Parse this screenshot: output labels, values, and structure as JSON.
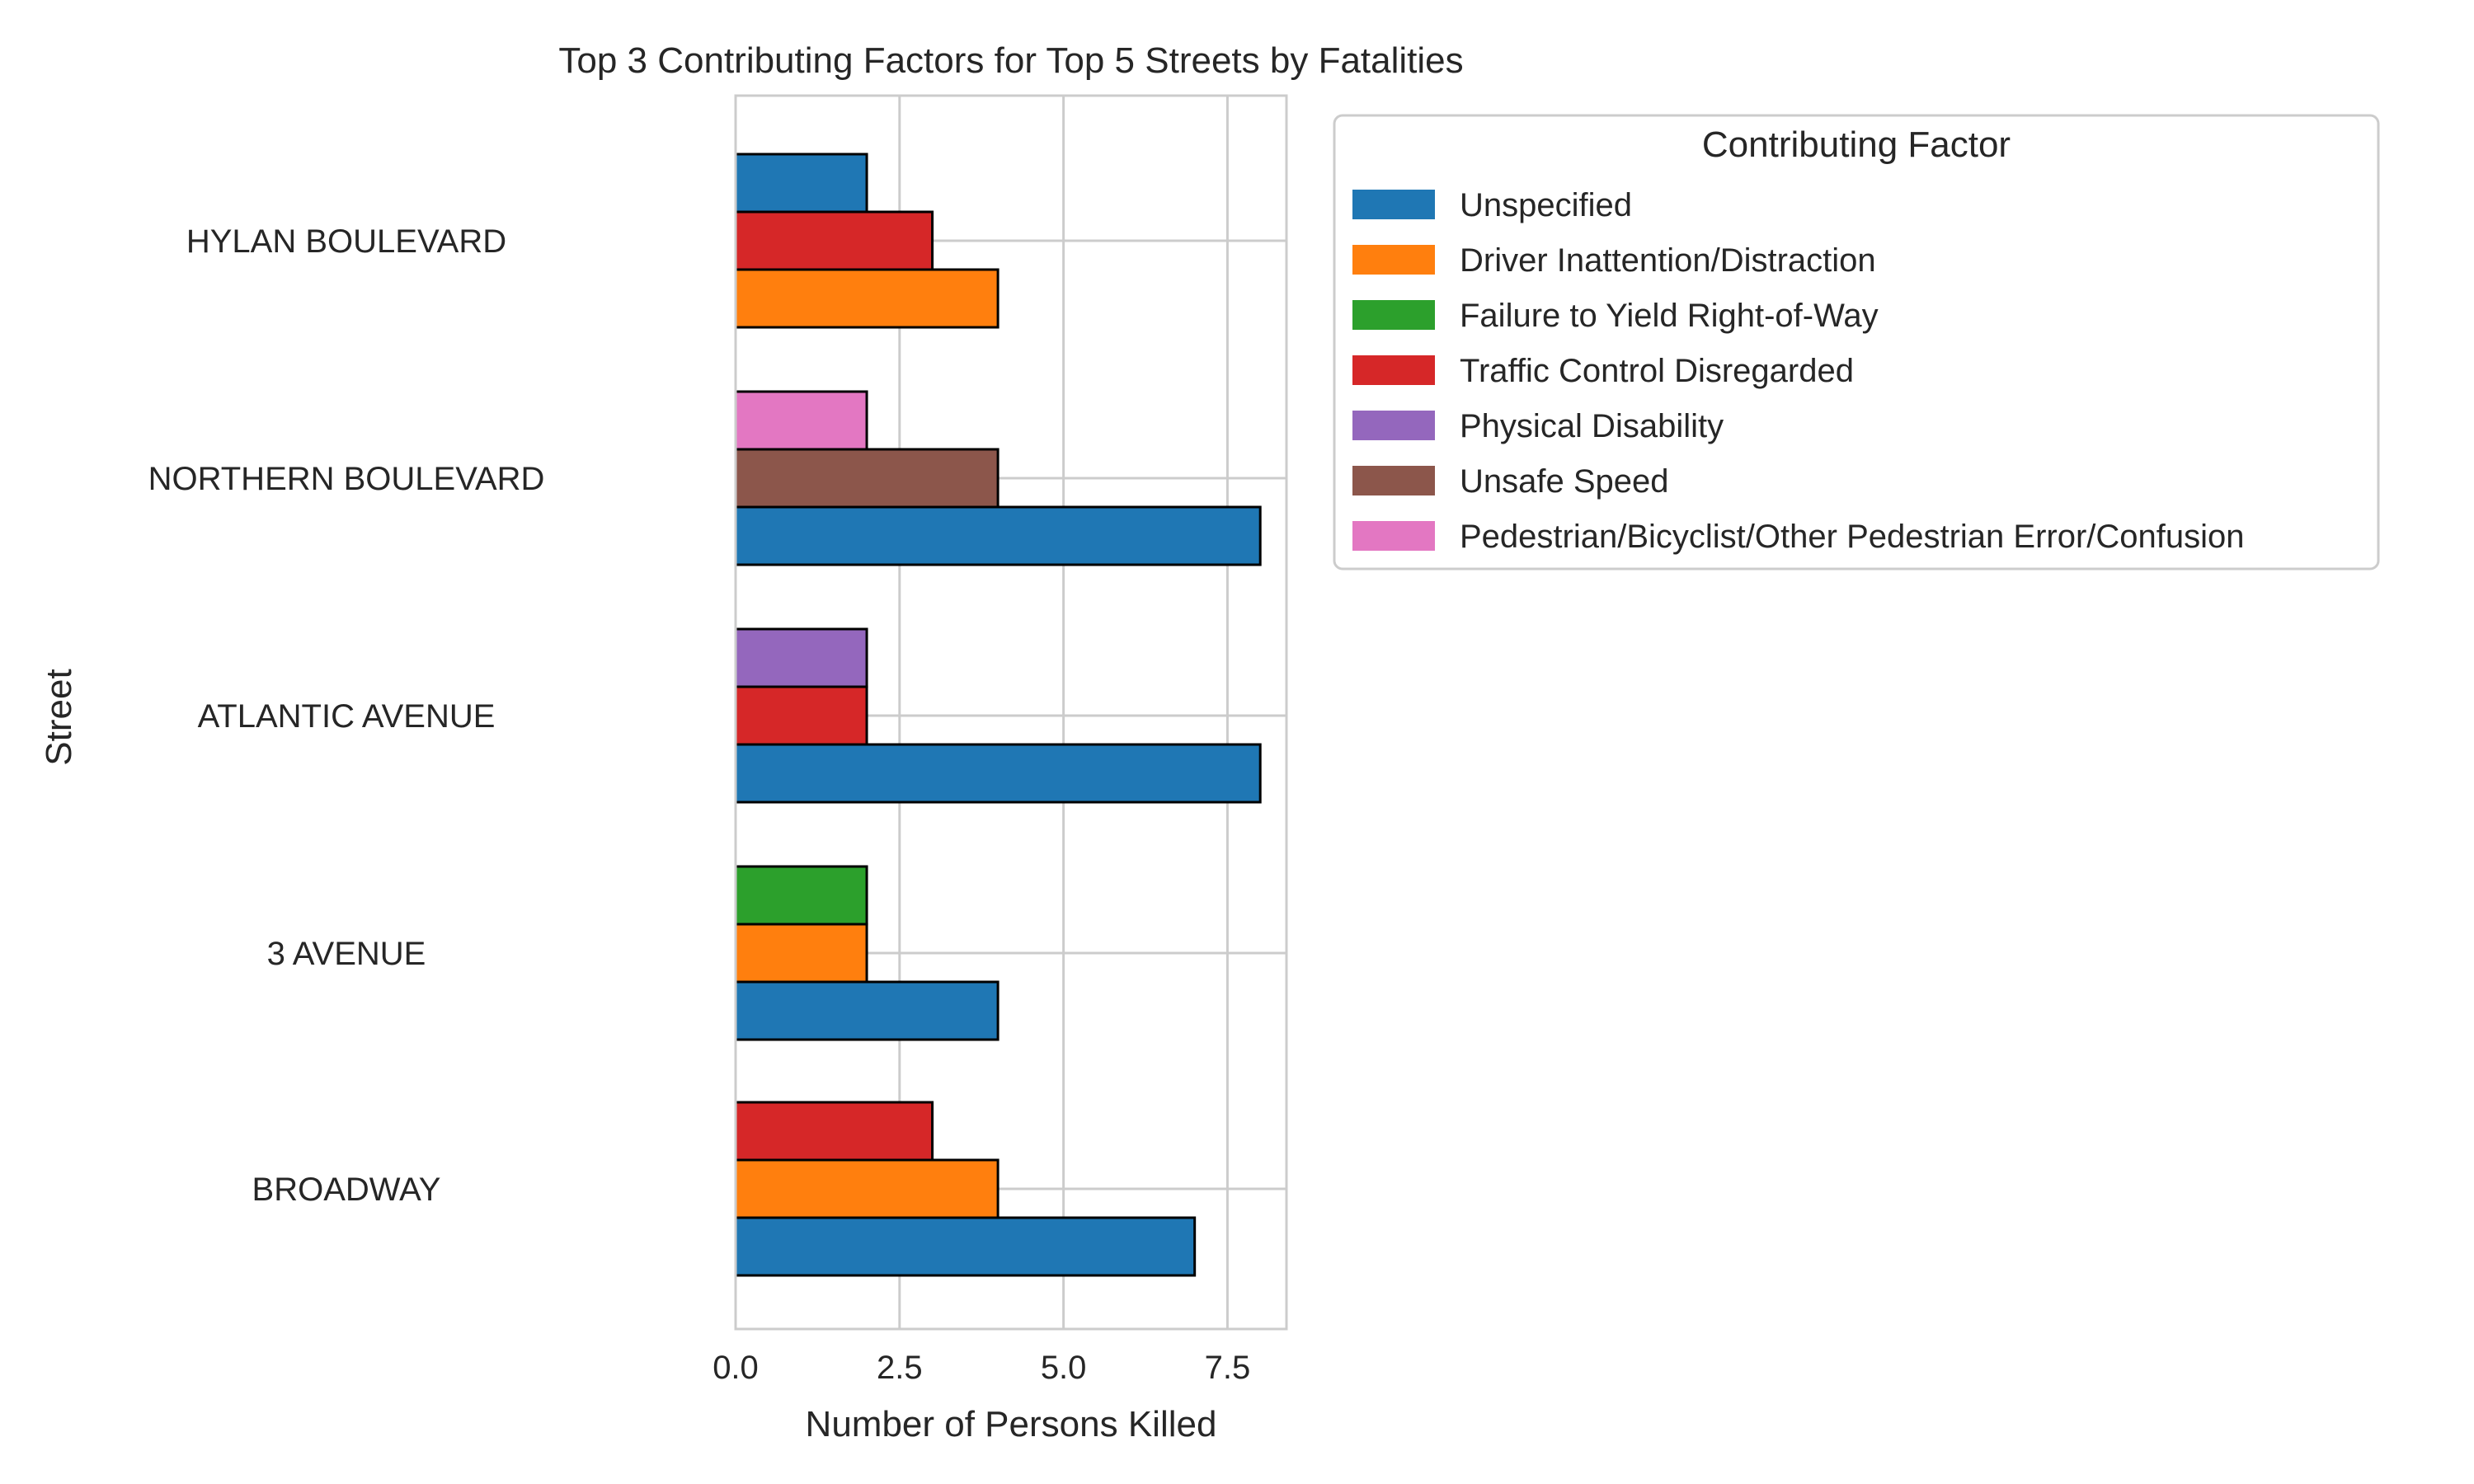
{
  "chart_data": {
    "type": "bar",
    "orientation": "horizontal",
    "title": "Top 3 Contributing Factors for Top 5 Streets by Fatalities",
    "xlabel": "Number of Persons Killed",
    "ylabel": "Street",
    "xlim": [
      0,
      8.4
    ],
    "xticks": [
      0.0,
      2.5,
      5.0,
      7.5
    ],
    "xtick_labels": [
      "0.0",
      "2.5",
      "5.0",
      "7.5"
    ],
    "grid": true,
    "legend": {
      "title": "Contributing Factor",
      "placement": "outside-right-top",
      "entries": [
        {
          "name": "Unspecified",
          "color": "#1f77b4"
        },
        {
          "name": "Driver Inattention/Distraction",
          "color": "#ff7f0e"
        },
        {
          "name": "Failure to Yield Right-of-Way",
          "color": "#2ca02c"
        },
        {
          "name": "Traffic Control Disregarded",
          "color": "#d62728"
        },
        {
          "name": "Physical Disability",
          "color": "#9467bd"
        },
        {
          "name": "Unsafe Speed",
          "color": "#8c564b"
        },
        {
          "name": "Pedestrian/Bicyclist/Other Pedestrian Error/Confusion",
          "color": "#e377c2"
        }
      ]
    },
    "categories": [
      "HYLAN BOULEVARD",
      "NORTHERN BOULEVARD",
      "ATLANTIC AVENUE",
      "3 AVENUE",
      "BROADWAY"
    ],
    "groups": [
      {
        "street": "HYLAN BOULEVARD",
        "bars": [
          {
            "factor": "Unspecified",
            "value": 2
          },
          {
            "factor": "Traffic Control Disregarded",
            "value": 3
          },
          {
            "factor": "Driver Inattention/Distraction",
            "value": 4
          }
        ]
      },
      {
        "street": "NORTHERN BOULEVARD",
        "bars": [
          {
            "factor": "Pedestrian/Bicyclist/Other Pedestrian Error/Confusion",
            "value": 2
          },
          {
            "factor": "Unsafe Speed",
            "value": 4
          },
          {
            "factor": "Unspecified",
            "value": 8
          }
        ]
      },
      {
        "street": "ATLANTIC AVENUE",
        "bars": [
          {
            "factor": "Physical Disability",
            "value": 2
          },
          {
            "factor": "Traffic Control Disregarded",
            "value": 2
          },
          {
            "factor": "Unspecified",
            "value": 8
          }
        ]
      },
      {
        "street": "3 AVENUE",
        "bars": [
          {
            "factor": "Failure to Yield Right-of-Way",
            "value": 2
          },
          {
            "factor": "Driver Inattention/Distraction",
            "value": 2
          },
          {
            "factor": "Unspecified",
            "value": 4
          }
        ]
      },
      {
        "street": "BROADWAY",
        "bars": [
          {
            "factor": "Traffic Control Disregarded",
            "value": 3
          },
          {
            "factor": "Driver Inattention/Distraction",
            "value": 4
          },
          {
            "factor": "Unspecified",
            "value": 7
          }
        ]
      }
    ]
  }
}
